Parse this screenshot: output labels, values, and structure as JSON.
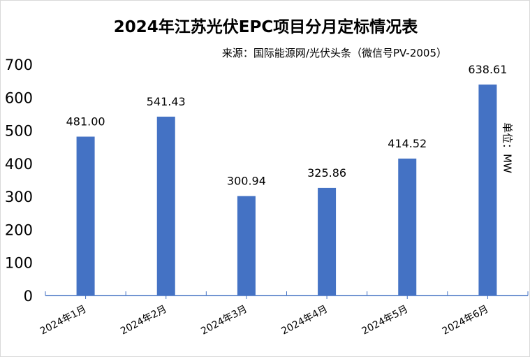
{
  "chart_data": {
    "type": "bar",
    "title": "2024年江苏光伏EPC项目分月定标情况表",
    "subtitle": "来源：国际能源网/光伏头条（微信号PV-2005）",
    "unit_label": "单位：MW",
    "categories": [
      "2024年1月",
      "2024年2月",
      "2024年3月",
      "2024年4月",
      "2024年5月",
      "2024年6月"
    ],
    "values": [
      481.0,
      541.43,
      300.94,
      325.86,
      414.52,
      638.61
    ],
    "value_labels": [
      "481.00",
      "541.43",
      "300.94",
      "325.86",
      "414.52",
      "638.61"
    ],
    "ylim": [
      0,
      700
    ],
    "yticks": [
      "0",
      "100",
      "200",
      "300",
      "400",
      "500",
      "600",
      "700"
    ],
    "grid": false,
    "legend": "none",
    "bar_color": "#4472C4",
    "axis_color": "#4472C4"
  }
}
